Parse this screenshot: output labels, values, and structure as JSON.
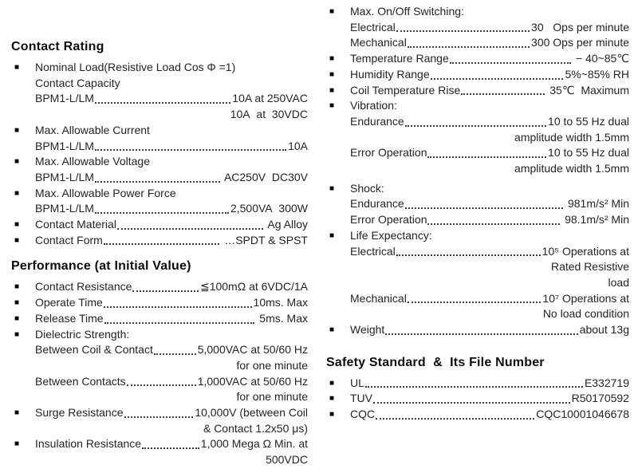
{
  "page": {
    "background": "#ffffff",
    "text_color": "#242424",
    "heading_color": "#0d0d0d"
  },
  "icons": {
    "bullet": "■"
  },
  "columns": [
    {
      "name": "left",
      "sections": [
        {
          "title": "Contact Rating",
          "lines": [
            {
              "bullet": true,
              "label": "Nominal Load(Resistive Load Cos Φ =1)"
            },
            {
              "bullet": false,
              "label": "Contact Capacity"
            },
            {
              "bullet": false,
              "label": "BPM1-L/LM",
              "value": "10A at 250VAC"
            },
            {
              "bullet": false,
              "value": "10A  at  30VDC"
            },
            {
              "bullet": true,
              "label": "Max. Allowable Current"
            },
            {
              "bullet": false,
              "label": "BPM1-L/LM",
              "value": "10A"
            },
            {
              "bullet": true,
              "label": "Max. Allowable Voltage"
            },
            {
              "bullet": false,
              "label": "BPM1-L/LM",
              "value": " AC250V  DC30V"
            },
            {
              "bullet": true,
              "label": "Max. Allowable Power Force"
            },
            {
              "bullet": false,
              "label": "BPM1-L/LM",
              "value": "2,500VA  300W"
            },
            {
              "bullet": true,
              "label": "Contact Material",
              "value": " Ag Alloy"
            },
            {
              "bullet": true,
              "label": "Contact Form",
              "value": " …SPDT & SPST"
            }
          ]
        },
        {
          "title": "Performance (at Initial Value)",
          "mt": 14,
          "lines": [
            {
              "bullet": true,
              "label": "Contact Resistance",
              "value": "≦100mΩ at 6VDC/1A"
            },
            {
              "bullet": true,
              "label": "Operate Time",
              "value": "10ms. Max"
            },
            {
              "bullet": true,
              "label": "Release Time",
              "value": " 5ms. Max"
            },
            {
              "bullet": true,
              "label": "Dielectric Strength:"
            },
            {
              "bullet": false,
              "label": "Between Coil & Contact",
              "value": "5,000VAC at 50/60 Hz"
            },
            {
              "bullet": false,
              "value": "for one minute"
            },
            {
              "bullet": false,
              "label": "Between Contacts",
              "value": "1,000VAC at 50/60 Hz"
            },
            {
              "bullet": false,
              "value": "for one minute"
            },
            {
              "bullet": true,
              "label": "Surge Resistance",
              "value": "10,000V (between Coil"
            },
            {
              "bullet": false,
              "value": "& Contact 1.2x50 μs)"
            },
            {
              "bullet": true,
              "label": "Insulation Resistance",
              "value": "1,000 Mega Ω Min. at"
            },
            {
              "bullet": false,
              "value": "500VDC"
            }
          ]
        }
      ]
    },
    {
      "name": "right",
      "sections": [
        {
          "title": "",
          "lines": [
            {
              "bullet": true,
              "label": "Max. On/Off Switching:"
            },
            {
              "bullet": false,
              "label": "Electrical",
              "value": "30   Ops per minute"
            },
            {
              "bullet": false,
              "label": "Mechanical",
              "value": "300 Ops per minute"
            },
            {
              "bullet": true,
              "label": "Temperature Range",
              "value": " − 40~85℃"
            },
            {
              "bullet": true,
              "label": "Humidity Range",
              "value": "5%~85% RH"
            },
            {
              "bullet": true,
              "label": "Coil Temperature Rise",
              "value": " 35℃  Maximum"
            },
            {
              "bullet": true,
              "label": "Vibration:"
            },
            {
              "bullet": false,
              "label": "Endurance",
              "value": "10 to 55 Hz dual"
            },
            {
              "bullet": false,
              "value": "amplitude width 1.5mm"
            },
            {
              "bullet": false,
              "label": "Error Operation",
              "value": "10 to 55 Hz dual"
            },
            {
              "bullet": false,
              "value": "amplitude width 1.5mm"
            },
            {
              "bullet": true,
              "label": "Shock:",
              "mt": 5
            },
            {
              "bullet": false,
              "label": "Endurance",
              "value": " 981m/s² Min"
            },
            {
              "bullet": false,
              "label": "Error Operation",
              "value": " 98.1m/s² Min"
            },
            {
              "bullet": true,
              "label": "Life Expectancy:"
            },
            {
              "bullet": false,
              "label": "Electrical",
              "value": "10⁵ Operations at"
            },
            {
              "bullet": false,
              "value": "Rated Resistive"
            },
            {
              "bullet": false,
              "value": "load"
            },
            {
              "bullet": false,
              "label": "Mechanical",
              "value": "10⁷ Operations at"
            },
            {
              "bullet": false,
              "value": "No load condition"
            },
            {
              "bullet": true,
              "label": "Weight",
              "value": "about 13g"
            }
          ]
        },
        {
          "title": "Safety Standard  &  Its File Number",
          "mt": 22,
          "lines": [
            {
              "bullet": true,
              "label": "UL",
              "value": "E332719"
            },
            {
              "bullet": true,
              "label": "TUV",
              "value": "R50170592"
            },
            {
              "bullet": true,
              "label": "CQC",
              "value": "CQC10001046678"
            }
          ]
        }
      ]
    }
  ]
}
